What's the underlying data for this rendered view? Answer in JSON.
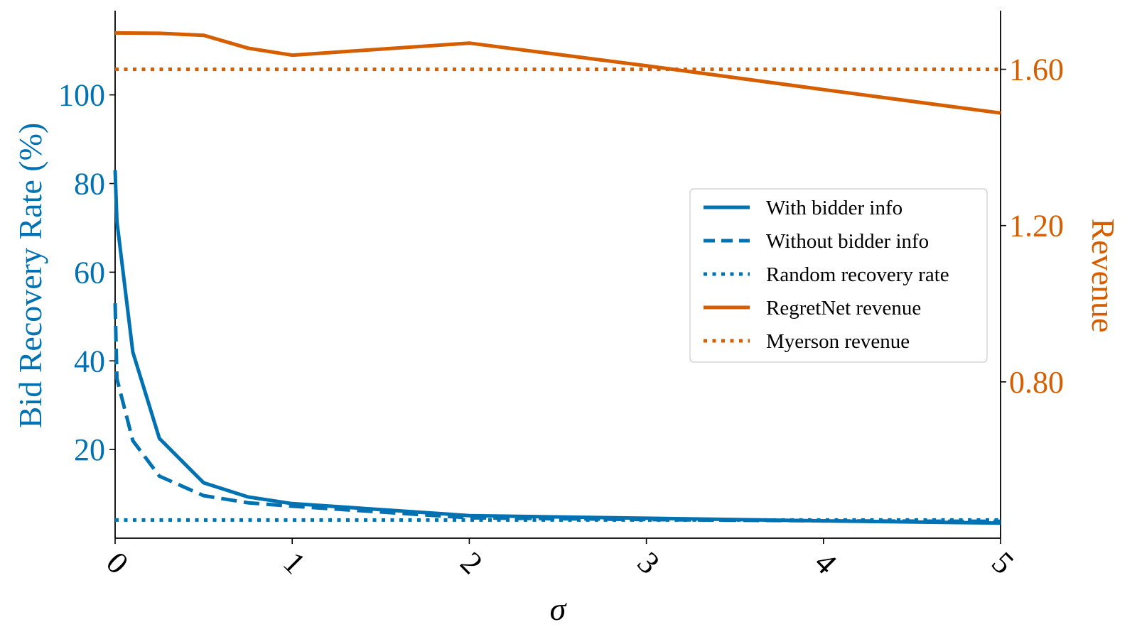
{
  "chart_data": {
    "type": "line",
    "xlabel": "σ",
    "ylabel_left": "Bid Recovery Rate (%)",
    "ylabel_right": "Revenue",
    "xlim": [
      0,
      5
    ],
    "ylim_left": [
      0,
      119
    ],
    "ylim_right": [
      0.4,
      1.75
    ],
    "xticks": [
      "0",
      "1",
      "2",
      "3",
      "4",
      "5"
    ],
    "yticks_left": [
      20,
      40,
      60,
      80,
      100
    ],
    "yticks_right": [
      "0.80",
      "1.20",
      "1.60"
    ],
    "grid": false,
    "legend_position": "center-right",
    "colors": {
      "left_axis": "#0072b2",
      "right_axis": "#d55e00"
    },
    "series": [
      {
        "name": "With bidder info",
        "axis": "left",
        "style": "solid",
        "color": "#0072b2",
        "x": [
          0,
          0.01,
          0.1,
          0.25,
          0.5,
          0.75,
          1,
          2,
          3,
          4,
          5
        ],
        "y": [
          83,
          71.5,
          42,
          22.5,
          12.5,
          9.3,
          7.8,
          5.1,
          4.5,
          3.9,
          3.4
        ]
      },
      {
        "name": "Without bidder info",
        "axis": "left",
        "style": "dashed",
        "color": "#0072b2",
        "x": [
          0,
          0.01,
          0.1,
          0.25,
          0.5,
          0.75,
          1,
          2,
          3,
          4,
          5
        ],
        "y": [
          53,
          36,
          22,
          14,
          9.6,
          8,
          7.2,
          4.6,
          4.2,
          3.9,
          3.8
        ]
      },
      {
        "name": "Random recovery rate",
        "axis": "left",
        "style": "dotted",
        "color": "#0072b2",
        "x": [
          0,
          5
        ],
        "y": [
          4.1,
          4.1
        ]
      },
      {
        "name": "RegretNet revenue",
        "axis": "right",
        "style": "solid",
        "color": "#d55e00",
        "x": [
          0,
          0.25,
          0.5,
          0.75,
          1,
          2,
          3,
          4,
          5
        ],
        "y": [
          1.693,
          1.692,
          1.687,
          1.654,
          1.636,
          1.667,
          1.609,
          1.548,
          1.488
        ]
      },
      {
        "name": "Myerson revenue",
        "axis": "right",
        "style": "dotted",
        "color": "#d55e00",
        "x": [
          0,
          5
        ],
        "y": [
          1.6,
          1.6
        ]
      }
    ]
  }
}
